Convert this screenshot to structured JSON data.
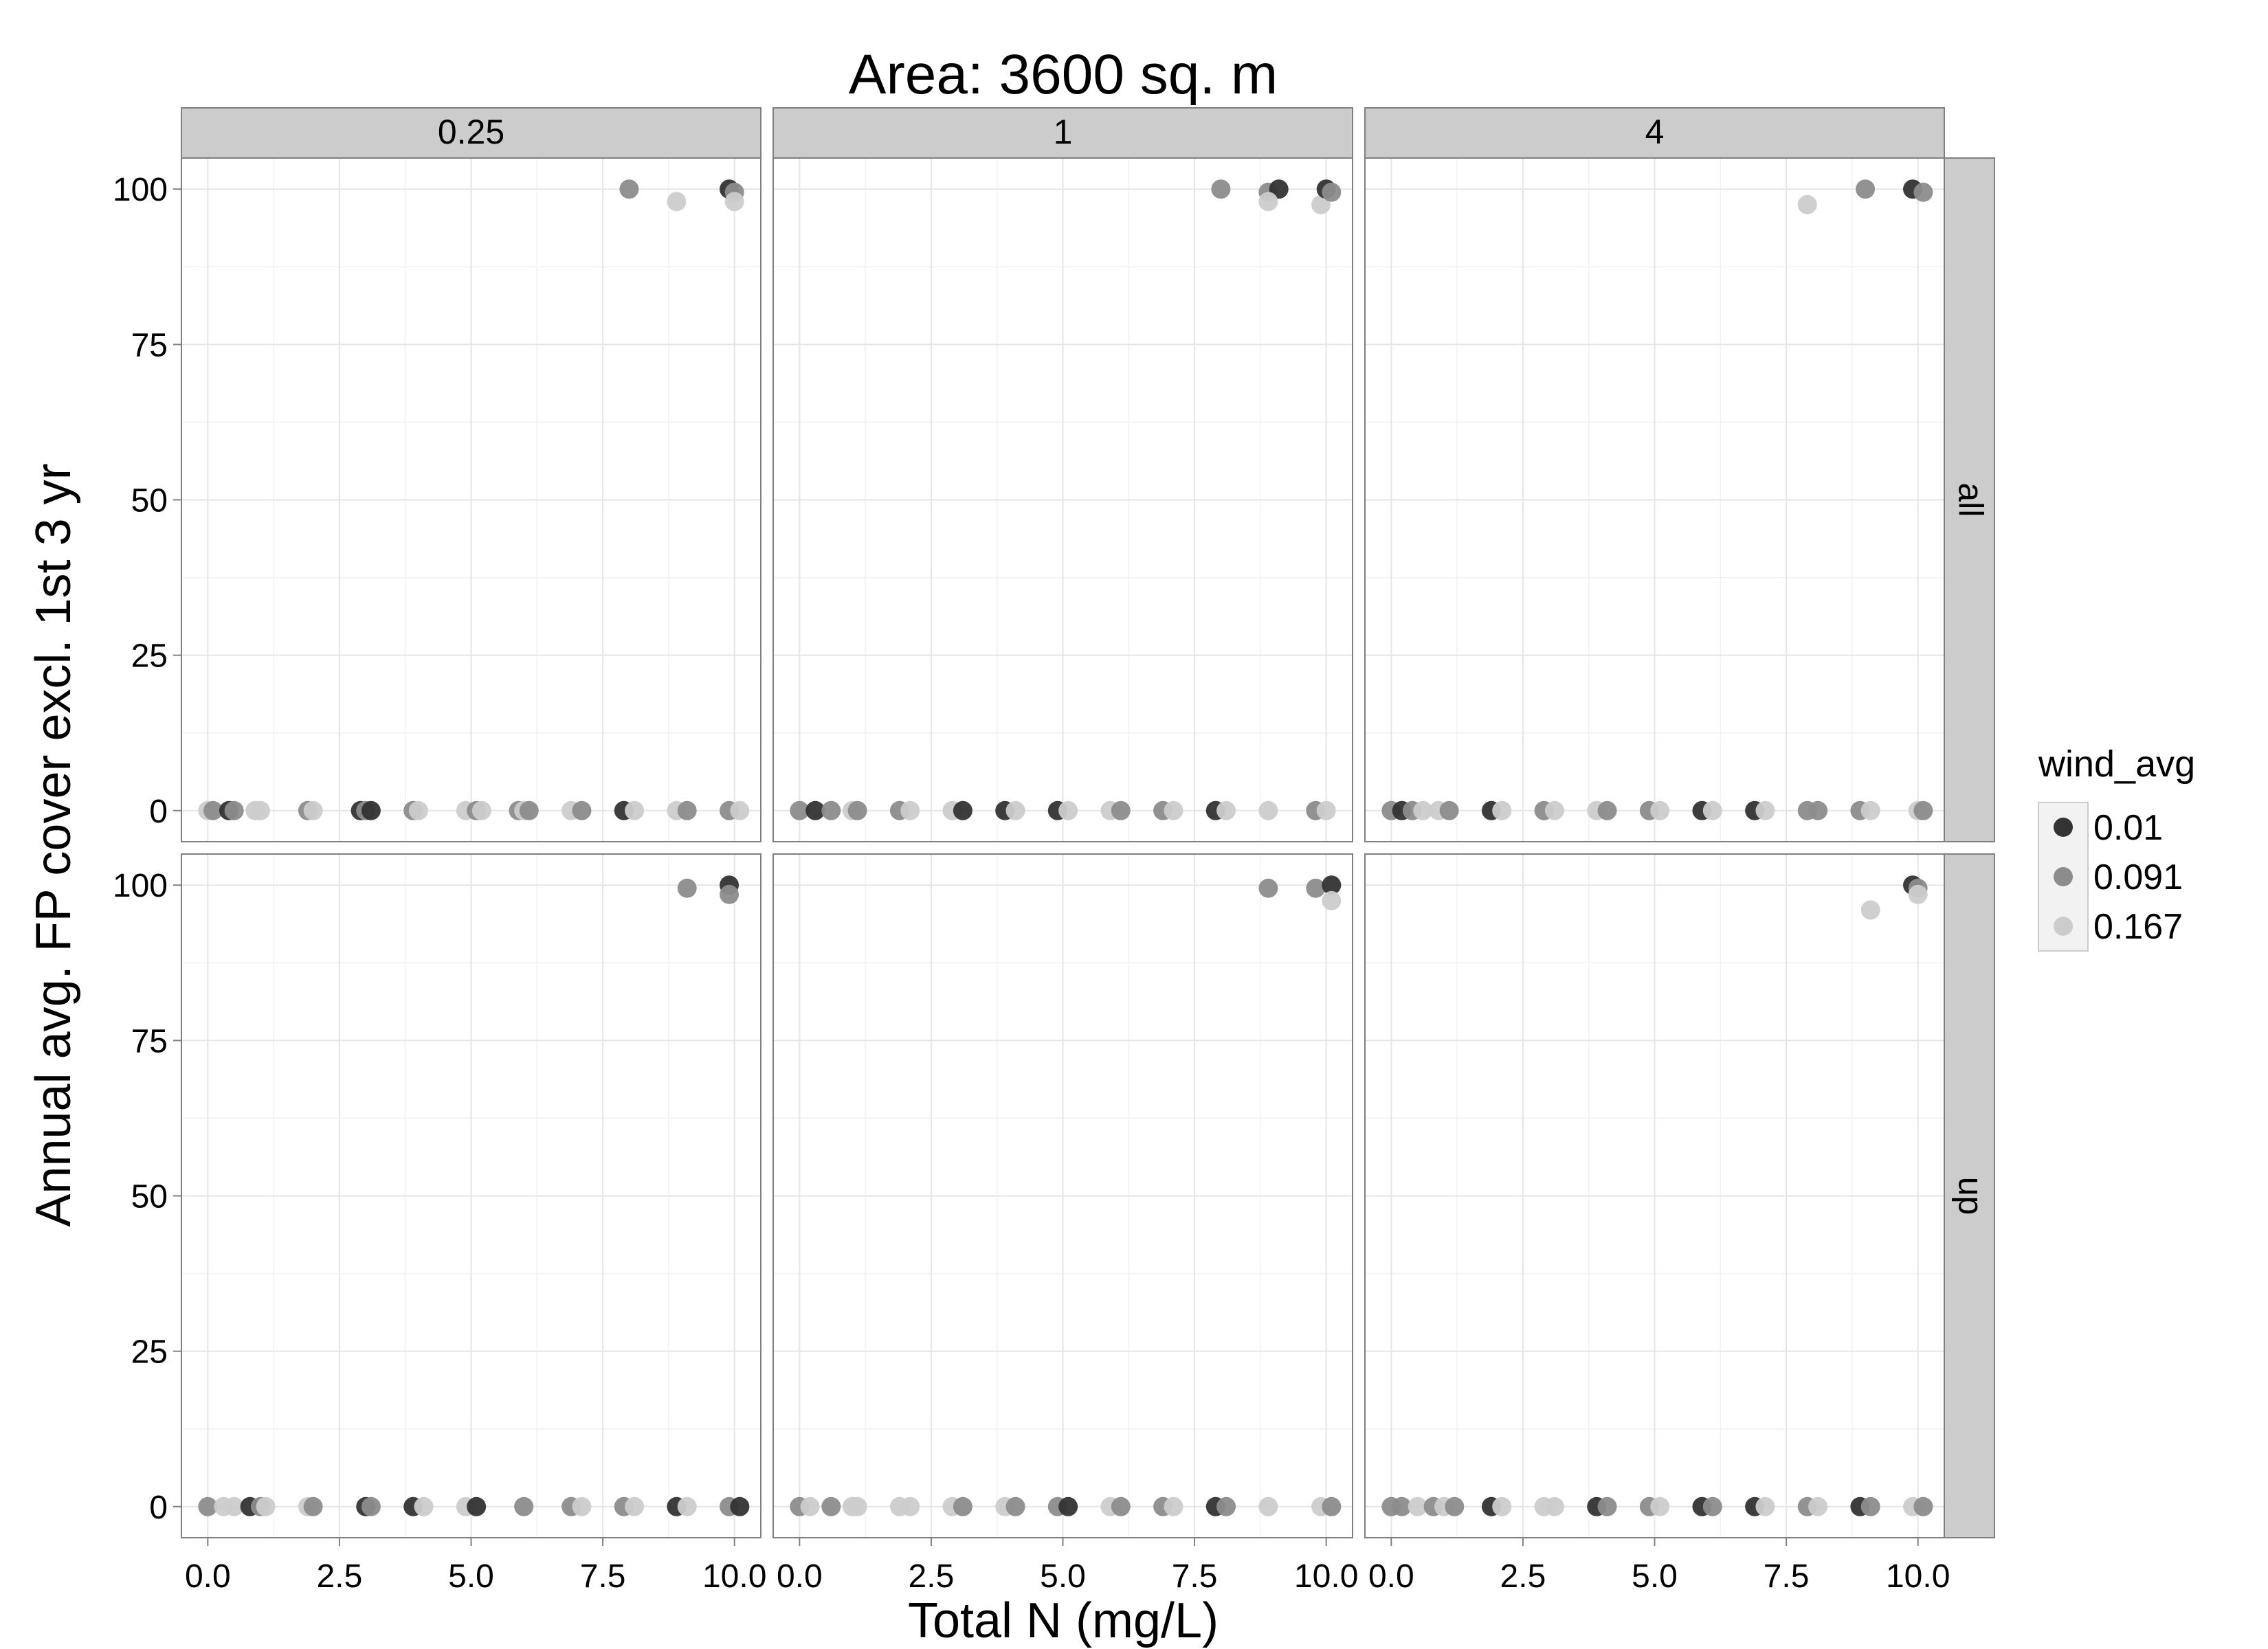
{
  "chart_data": {
    "type": "scatter",
    "title": "Area: 3600 sq. m",
    "xlabel": "Total N (mg/L)",
    "ylabel": "Annual avg. FP cover excl. 1st 3 yr",
    "xlim": [
      -0.5,
      10.5
    ],
    "ylim": [
      -5,
      105
    ],
    "x_ticks": [
      "0.0",
      "2.5",
      "5.0",
      "7.5",
      "10.0"
    ],
    "y_ticks": [
      "0",
      "25",
      "50",
      "75",
      "100"
    ],
    "grid": true,
    "col_facets": [
      "0.25",
      "1",
      "4"
    ],
    "row_facets": [
      "all",
      "up"
    ],
    "legend": {
      "title": "wind_avg",
      "position": "right",
      "items": [
        {
          "label": "0.01",
          "color": "#333333"
        },
        {
          "label": "0.091",
          "color": "#8c8c8c"
        },
        {
          "label": "0.167",
          "color": "#cccccc"
        }
      ]
    },
    "panels": [
      {
        "col": "0.25",
        "row": "all",
        "points": [
          {
            "x": 0.0,
            "y": 0,
            "g": 2
          },
          {
            "x": 0.1,
            "y": 0,
            "g": 1
          },
          {
            "x": 0.4,
            "y": 0,
            "g": 0
          },
          {
            "x": 0.5,
            "y": 0,
            "g": 1
          },
          {
            "x": 0.9,
            "y": 0,
            "g": 2
          },
          {
            "x": 1.0,
            "y": 0,
            "g": 2
          },
          {
            "x": 1.9,
            "y": 0,
            "g": 1
          },
          {
            "x": 2.0,
            "y": 0,
            "g": 2
          },
          {
            "x": 2.9,
            "y": 0,
            "g": 0
          },
          {
            "x": 3.0,
            "y": 0,
            "g": 1
          },
          {
            "x": 3.1,
            "y": 0,
            "g": 0
          },
          {
            "x": 3.9,
            "y": 0,
            "g": 1
          },
          {
            "x": 4.0,
            "y": 0,
            "g": 2
          },
          {
            "x": 4.9,
            "y": 0,
            "g": 2
          },
          {
            "x": 5.1,
            "y": 0,
            "g": 1
          },
          {
            "x": 5.2,
            "y": 0,
            "g": 2
          },
          {
            "x": 5.9,
            "y": 0,
            "g": 1
          },
          {
            "x": 6.0,
            "y": 0,
            "g": 2
          },
          {
            "x": 6.1,
            "y": 0,
            "g": 1
          },
          {
            "x": 6.9,
            "y": 0,
            "g": 2
          },
          {
            "x": 7.1,
            "y": 0,
            "g": 1
          },
          {
            "x": 7.9,
            "y": 0,
            "g": 0
          },
          {
            "x": 8.1,
            "y": 0,
            "g": 2
          },
          {
            "x": 8.9,
            "y": 0,
            "g": 2
          },
          {
            "x": 9.1,
            "y": 0,
            "g": 1
          },
          {
            "x": 9.9,
            "y": 0,
            "g": 1
          },
          {
            "x": 10.1,
            "y": 0,
            "g": 2
          },
          {
            "x": 8.0,
            "y": 100,
            "g": 1
          },
          {
            "x": 8.9,
            "y": 98,
            "g": 2
          },
          {
            "x": 9.9,
            "y": 100,
            "g": 0
          },
          {
            "x": 10.0,
            "y": 99.5,
            "g": 1
          },
          {
            "x": 10.0,
            "y": 98,
            "g": 2
          }
        ]
      },
      {
        "col": "1",
        "row": "all",
        "points": [
          {
            "x": 0.0,
            "y": 0,
            "g": 1
          },
          {
            "x": 0.3,
            "y": 0,
            "g": 0
          },
          {
            "x": 0.6,
            "y": 0,
            "g": 1
          },
          {
            "x": 1.0,
            "y": 0,
            "g": 2
          },
          {
            "x": 1.1,
            "y": 0,
            "g": 1
          },
          {
            "x": 1.9,
            "y": 0,
            "g": 1
          },
          {
            "x": 2.1,
            "y": 0,
            "g": 2
          },
          {
            "x": 2.9,
            "y": 0,
            "g": 2
          },
          {
            "x": 3.1,
            "y": 0,
            "g": 0
          },
          {
            "x": 3.9,
            "y": 0,
            "g": 0
          },
          {
            "x": 4.1,
            "y": 0,
            "g": 2
          },
          {
            "x": 4.9,
            "y": 0,
            "g": 0
          },
          {
            "x": 5.1,
            "y": 0,
            "g": 2
          },
          {
            "x": 5.9,
            "y": 0,
            "g": 2
          },
          {
            "x": 6.1,
            "y": 0,
            "g": 1
          },
          {
            "x": 6.9,
            "y": 0,
            "g": 1
          },
          {
            "x": 7.1,
            "y": 0,
            "g": 2
          },
          {
            "x": 7.9,
            "y": 0,
            "g": 0
          },
          {
            "x": 8.1,
            "y": 0,
            "g": 2
          },
          {
            "x": 8.9,
            "y": 0,
            "g": 2
          },
          {
            "x": 9.8,
            "y": 0,
            "g": 1
          },
          {
            "x": 10.0,
            "y": 0,
            "g": 2
          },
          {
            "x": 8.0,
            "y": 100,
            "g": 1
          },
          {
            "x": 8.9,
            "y": 99.5,
            "g": 1
          },
          {
            "x": 9.1,
            "y": 100,
            "g": 0
          },
          {
            "x": 8.9,
            "y": 98,
            "g": 2
          },
          {
            "x": 9.9,
            "y": 97.5,
            "g": 2
          },
          {
            "x": 10.0,
            "y": 100,
            "g": 0
          },
          {
            "x": 10.1,
            "y": 99.5,
            "g": 1
          }
        ]
      },
      {
        "col": "4",
        "row": "all",
        "points": [
          {
            "x": 0.0,
            "y": 0,
            "g": 1
          },
          {
            "x": 0.2,
            "y": 0,
            "g": 0
          },
          {
            "x": 0.4,
            "y": 0,
            "g": 1
          },
          {
            "x": 0.6,
            "y": 0,
            "g": 2
          },
          {
            "x": 0.9,
            "y": 0,
            "g": 2
          },
          {
            "x": 1.1,
            "y": 0,
            "g": 1
          },
          {
            "x": 1.9,
            "y": 0,
            "g": 0
          },
          {
            "x": 2.1,
            "y": 0,
            "g": 2
          },
          {
            "x": 2.9,
            "y": 0,
            "g": 1
          },
          {
            "x": 3.1,
            "y": 0,
            "g": 2
          },
          {
            "x": 3.9,
            "y": 0,
            "g": 2
          },
          {
            "x": 4.1,
            "y": 0,
            "g": 1
          },
          {
            "x": 4.9,
            "y": 0,
            "g": 1
          },
          {
            "x": 5.1,
            "y": 0,
            "g": 2
          },
          {
            "x": 5.9,
            "y": 0,
            "g": 0
          },
          {
            "x": 6.1,
            "y": 0,
            "g": 2
          },
          {
            "x": 6.9,
            "y": 0,
            "g": 0
          },
          {
            "x": 7.1,
            "y": 0,
            "g": 2
          },
          {
            "x": 7.9,
            "y": 0,
            "g": 1
          },
          {
            "x": 8.1,
            "y": 0,
            "g": 1
          },
          {
            "x": 8.9,
            "y": 0,
            "g": 1
          },
          {
            "x": 9.1,
            "y": 0,
            "g": 2
          },
          {
            "x": 10.0,
            "y": 0,
            "g": 2
          },
          {
            "x": 10.1,
            "y": 0,
            "g": 1
          },
          {
            "x": 7.9,
            "y": 97.5,
            "g": 2
          },
          {
            "x": 9.0,
            "y": 100,
            "g": 1
          },
          {
            "x": 9.9,
            "y": 100,
            "g": 0
          },
          {
            "x": 10.1,
            "y": 99.5,
            "g": 1
          }
        ]
      },
      {
        "col": "0.25",
        "row": "up",
        "points": [
          {
            "x": 0.0,
            "y": 0,
            "g": 1
          },
          {
            "x": 0.3,
            "y": 0,
            "g": 2
          },
          {
            "x": 0.5,
            "y": 0,
            "g": 2
          },
          {
            "x": 0.8,
            "y": 0,
            "g": 0
          },
          {
            "x": 1.0,
            "y": 0,
            "g": 1
          },
          {
            "x": 1.1,
            "y": 0,
            "g": 2
          },
          {
            "x": 1.9,
            "y": 0,
            "g": 2
          },
          {
            "x": 2.0,
            "y": 0,
            "g": 1
          },
          {
            "x": 3.0,
            "y": 0,
            "g": 0
          },
          {
            "x": 3.1,
            "y": 0,
            "g": 1
          },
          {
            "x": 3.9,
            "y": 0,
            "g": 0
          },
          {
            "x": 4.1,
            "y": 0,
            "g": 2
          },
          {
            "x": 4.9,
            "y": 0,
            "g": 2
          },
          {
            "x": 5.1,
            "y": 0,
            "g": 0
          },
          {
            "x": 6.0,
            "y": 0,
            "g": 1
          },
          {
            "x": 6.9,
            "y": 0,
            "g": 1
          },
          {
            "x": 7.1,
            "y": 0,
            "g": 2
          },
          {
            "x": 7.9,
            "y": 0,
            "g": 1
          },
          {
            "x": 8.1,
            "y": 0,
            "g": 2
          },
          {
            "x": 8.9,
            "y": 0,
            "g": 0
          },
          {
            "x": 9.1,
            "y": 0,
            "g": 2
          },
          {
            "x": 9.9,
            "y": 0,
            "g": 1
          },
          {
            "x": 10.1,
            "y": 0,
            "g": 0
          },
          {
            "x": 9.1,
            "y": 99.5,
            "g": 1
          },
          {
            "x": 9.9,
            "y": 100,
            "g": 0
          },
          {
            "x": 9.9,
            "y": 98.5,
            "g": 1
          }
        ]
      },
      {
        "col": "1",
        "row": "up",
        "points": [
          {
            "x": 0.0,
            "y": 0,
            "g": 1
          },
          {
            "x": 0.2,
            "y": 0,
            "g": 2
          },
          {
            "x": 0.6,
            "y": 0,
            "g": 1
          },
          {
            "x": 1.0,
            "y": 0,
            "g": 2
          },
          {
            "x": 1.1,
            "y": 0,
            "g": 2
          },
          {
            "x": 1.9,
            "y": 0,
            "g": 2
          },
          {
            "x": 2.1,
            "y": 0,
            "g": 2
          },
          {
            "x": 2.9,
            "y": 0,
            "g": 2
          },
          {
            "x": 3.1,
            "y": 0,
            "g": 1
          },
          {
            "x": 3.9,
            "y": 0,
            "g": 2
          },
          {
            "x": 4.1,
            "y": 0,
            "g": 1
          },
          {
            "x": 4.9,
            "y": 0,
            "g": 1
          },
          {
            "x": 5.1,
            "y": 0,
            "g": 0
          },
          {
            "x": 5.9,
            "y": 0,
            "g": 2
          },
          {
            "x": 6.1,
            "y": 0,
            "g": 1
          },
          {
            "x": 6.9,
            "y": 0,
            "g": 1
          },
          {
            "x": 7.1,
            "y": 0,
            "g": 2
          },
          {
            "x": 7.9,
            "y": 0,
            "g": 0
          },
          {
            "x": 8.1,
            "y": 0,
            "g": 1
          },
          {
            "x": 8.9,
            "y": 0,
            "g": 2
          },
          {
            "x": 9.9,
            "y": 0,
            "g": 2
          },
          {
            "x": 10.1,
            "y": 0,
            "g": 1
          },
          {
            "x": 8.9,
            "y": 99.5,
            "g": 1
          },
          {
            "x": 9.8,
            "y": 99.5,
            "g": 1
          },
          {
            "x": 10.1,
            "y": 100,
            "g": 0
          },
          {
            "x": 10.1,
            "y": 97.5,
            "g": 2
          }
        ]
      },
      {
        "col": "4",
        "row": "up",
        "points": [
          {
            "x": 0.0,
            "y": 0,
            "g": 1
          },
          {
            "x": 0.2,
            "y": 0,
            "g": 1
          },
          {
            "x": 0.5,
            "y": 0,
            "g": 2
          },
          {
            "x": 0.8,
            "y": 0,
            "g": 1
          },
          {
            "x": 1.0,
            "y": 0,
            "g": 2
          },
          {
            "x": 1.2,
            "y": 0,
            "g": 1
          },
          {
            "x": 1.9,
            "y": 0,
            "g": 0
          },
          {
            "x": 2.1,
            "y": 0,
            "g": 2
          },
          {
            "x": 2.9,
            "y": 0,
            "g": 2
          },
          {
            "x": 3.1,
            "y": 0,
            "g": 2
          },
          {
            "x": 3.9,
            "y": 0,
            "g": 0
          },
          {
            "x": 4.1,
            "y": 0,
            "g": 1
          },
          {
            "x": 4.9,
            "y": 0,
            "g": 1
          },
          {
            "x": 5.1,
            "y": 0,
            "g": 2
          },
          {
            "x": 5.9,
            "y": 0,
            "g": 0
          },
          {
            "x": 6.1,
            "y": 0,
            "g": 1
          },
          {
            "x": 6.9,
            "y": 0,
            "g": 0
          },
          {
            "x": 7.1,
            "y": 0,
            "g": 2
          },
          {
            "x": 7.9,
            "y": 0,
            "g": 1
          },
          {
            "x": 8.1,
            "y": 0,
            "g": 2
          },
          {
            "x": 8.9,
            "y": 0,
            "g": 0
          },
          {
            "x": 9.1,
            "y": 0,
            "g": 1
          },
          {
            "x": 9.9,
            "y": 0,
            "g": 2
          },
          {
            "x": 10.1,
            "y": 0,
            "g": 1
          },
          {
            "x": 9.1,
            "y": 96,
            "g": 2
          },
          {
            "x": 9.9,
            "y": 100,
            "g": 0
          },
          {
            "x": 10.0,
            "y": 99.5,
            "g": 1
          },
          {
            "x": 10.0,
            "y": 98.5,
            "g": 2
          }
        ]
      }
    ]
  }
}
